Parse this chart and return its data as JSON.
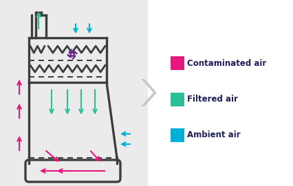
{
  "bg_left": "#ebebeb",
  "bg_right": "#ffffff",
  "cabinet_color": "#3d3d3d",
  "contaminated_color": "#e5187e",
  "filtered_color": "#2bbf99",
  "ambient_color": "#00b0d8",
  "fan_color": "#6b2f8a",
  "legend_text_color": "#1e1e5c",
  "legend_items": [
    {
      "label": "Contaminated air",
      "color": "#e5187e"
    },
    {
      "label": "Filtered air",
      "color": "#2bbf99"
    },
    {
      "label": "Ambient air",
      "color": "#00b0d8"
    }
  ],
  "arrow_lw": 1.5,
  "cabinet_lw": 2.4
}
